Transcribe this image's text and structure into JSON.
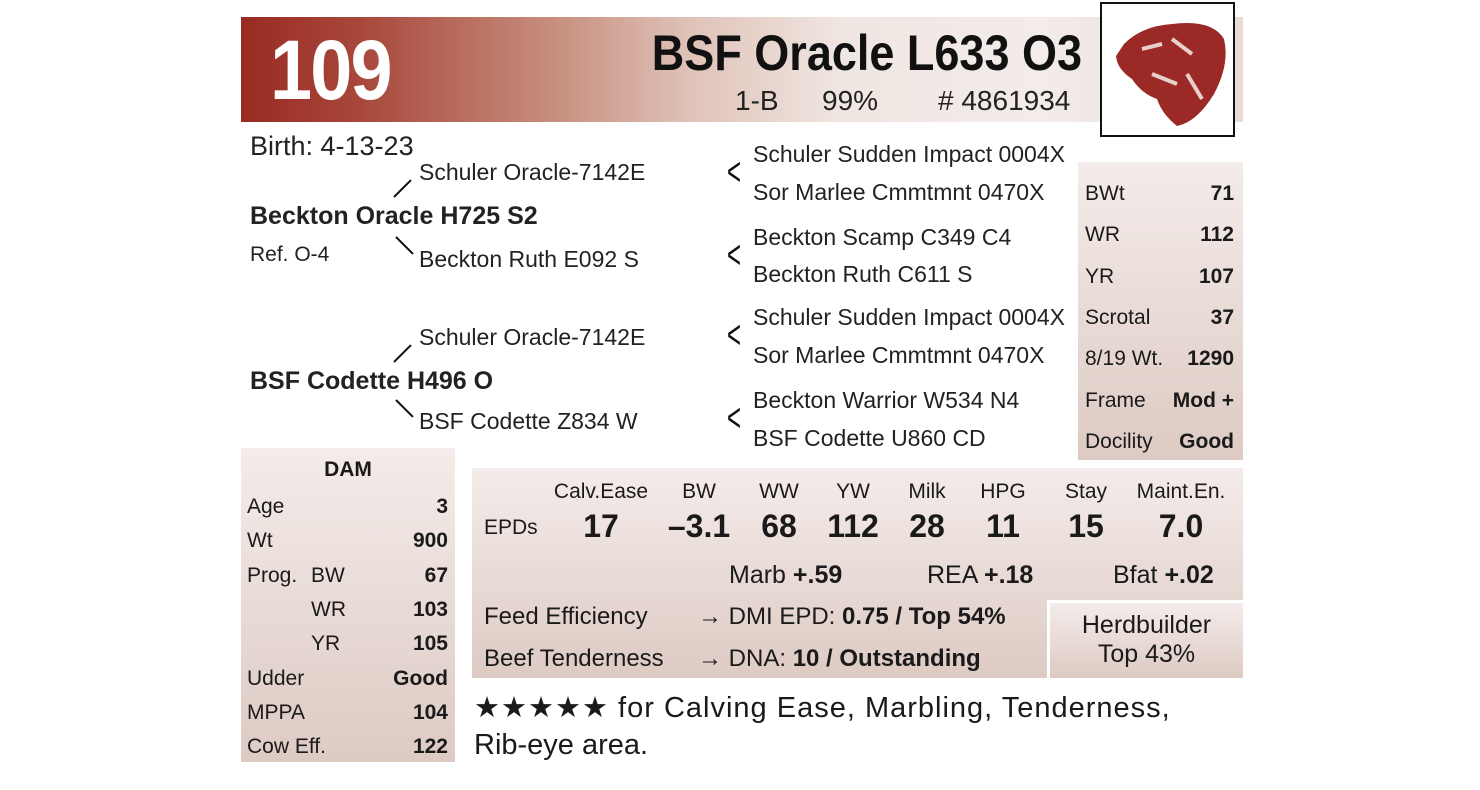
{
  "header": {
    "lot_number": "109",
    "name": "BSF Oracle L633 O3",
    "class": "1-B",
    "percent": "99%",
    "reg_number": "# 4861934",
    "logo": "bull-head-logo",
    "accent": "#992a22"
  },
  "birth": "Birth: 4-13-23",
  "pedigree": {
    "sire": {
      "name": "Beckton Oracle H725 S2",
      "ref": "Ref. O-4",
      "sire": "Schuler Oracle-7142E",
      "dam": "Beckton Ruth E092 S"
    },
    "dam": {
      "name": "BSF Codette H496 O",
      "sire": "Schuler Oracle-7142E",
      "dam": "BSF Codette Z834 W"
    },
    "great": [
      "Schuler Sudden Impact 0004X",
      "Sor Marlee Cmmtmnt 0470X",
      "Beckton Scamp C349 C4",
      "Beckton Ruth C611 S",
      "Schuler Sudden Impact 0004X",
      "Sor Marlee Cmmtmnt 0470X",
      "Beckton Warrior W534 N4",
      "BSF Codette U860 CD"
    ]
  },
  "stats": [
    {
      "label": "BWt",
      "value": "71"
    },
    {
      "label": "WR",
      "value": "112"
    },
    {
      "label": "YR",
      "value": "107"
    },
    {
      "label": "Scrotal",
      "value": "37"
    },
    {
      "label": "8/19 Wt.",
      "value": "1290"
    },
    {
      "label": "Frame",
      "value": "Mod +"
    },
    {
      "label": "Docility",
      "value": "Good"
    }
  ],
  "dam_panel": {
    "title": "DAM",
    "rows": [
      {
        "label": "Age",
        "value": "3"
      },
      {
        "label": "Wt",
        "value": "900"
      },
      {
        "label": "Prog.",
        "sub": "BW",
        "value": "67"
      },
      {
        "label": "",
        "sub": "WR",
        "value": "103"
      },
      {
        "label": "",
        "sub": "YR",
        "value": "105"
      },
      {
        "label": "Udder",
        "value": "Good"
      },
      {
        "label": "MPPA",
        "value": "104"
      },
      {
        "label": "Cow Eff.",
        "value": "122"
      }
    ]
  },
  "epds": {
    "label": "EPDs",
    "headers": [
      "Calv.Ease",
      "BW",
      "WW",
      "YW",
      "Milk",
      "HPG",
      "Stay",
      "Maint.En."
    ],
    "values": [
      "17",
      "–3.1",
      "68",
      "112",
      "28",
      "11",
      "15",
      "7.0"
    ],
    "marb_label": "Marb",
    "marb": "+.59",
    "rea_label": "REA",
    "rea": "+.18",
    "bfat_label": "Bfat",
    "bfat": "+.02",
    "feed_label": "Feed Efficiency",
    "feed_pre": "→ DMI EPD: ",
    "feed_val": "0.75 / Top 54%",
    "tender_label": "Beef Tenderness",
    "tender_pre": "→ DNA: ",
    "tender_val": "10 / Outstanding",
    "herd_title": "Herdbuilder",
    "herd_val": "Top 43%"
  },
  "note": {
    "stars": "★★★★★",
    "text": " for Calving Ease, Marbling, Tenderness,",
    "text2": "Rib-eye area."
  }
}
